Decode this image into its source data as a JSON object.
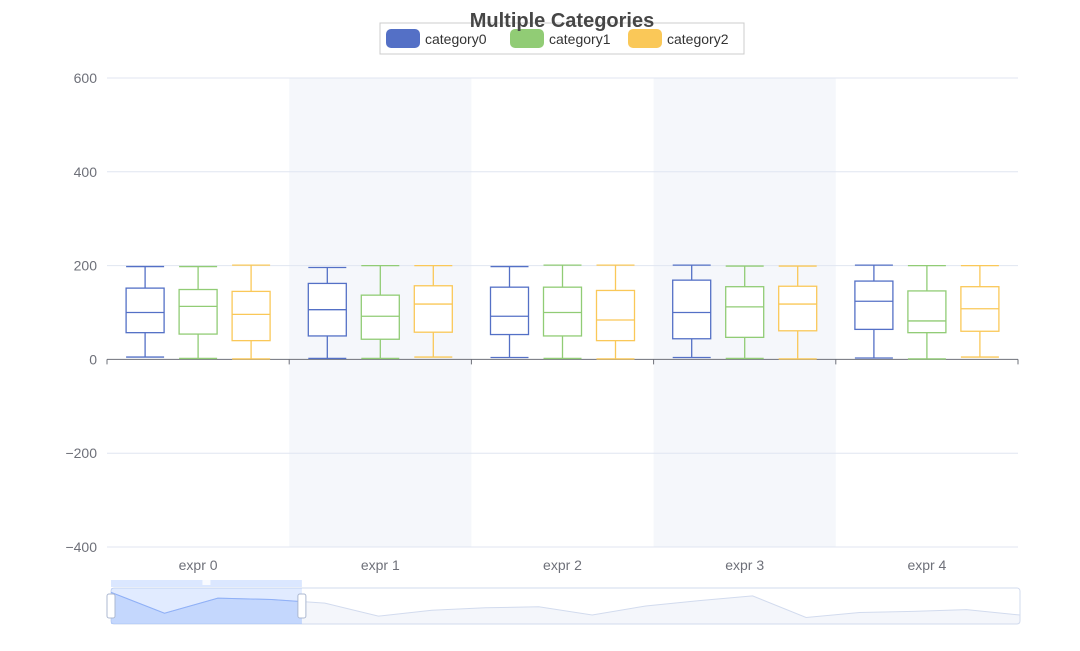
{
  "chart_data": {
    "type": "boxplot",
    "title": "Multiple Categories",
    "categories": [
      "expr 0",
      "expr 1",
      "expr 2",
      "expr 3",
      "expr 4"
    ],
    "ylim": [
      -400,
      600
    ],
    "yticks": [
      600,
      400,
      200,
      0,
      -200,
      -400
    ],
    "ytick_labels": [
      "600",
      "400",
      "200",
      "0",
      "−200",
      "−400"
    ],
    "grid": true,
    "legend_position": "top-center",
    "series": [
      {
        "name": "category0",
        "color": "#5470c6",
        "boxes": [
          {
            "min": 5,
            "q1": 57,
            "median": 100,
            "q3": 152,
            "max": 198
          },
          {
            "min": 2,
            "q1": 50,
            "median": 106,
            "q3": 162,
            "max": 196
          },
          {
            "min": 4,
            "q1": 53,
            "median": 92,
            "q3": 154,
            "max": 198
          },
          {
            "min": 4,
            "q1": 44,
            "median": 100,
            "q3": 169,
            "max": 201
          },
          {
            "min": 3,
            "q1": 64,
            "median": 124,
            "q3": 167,
            "max": 201
          }
        ]
      },
      {
        "name": "category1",
        "color": "#91cc75",
        "boxes": [
          {
            "min": 2,
            "q1": 54,
            "median": 113,
            "q3": 149,
            "max": 198
          },
          {
            "min": 2,
            "q1": 43,
            "median": 92,
            "q3": 137,
            "max": 200
          },
          {
            "min": 2,
            "q1": 50,
            "median": 100,
            "q3": 154,
            "max": 201
          },
          {
            "min": 2,
            "q1": 47,
            "median": 112,
            "q3": 155,
            "max": 199
          },
          {
            "min": 1,
            "q1": 57,
            "median": 82,
            "q3": 146,
            "max": 200
          }
        ]
      },
      {
        "name": "category2",
        "color": "#fac858",
        "boxes": [
          {
            "min": 1,
            "q1": 40,
            "median": 96,
            "q3": 145,
            "max": 201
          },
          {
            "min": 5,
            "q1": 58,
            "median": 118,
            "q3": 157,
            "max": 200
          },
          {
            "min": 1,
            "q1": 40,
            "median": 84,
            "q3": 147,
            "max": 201
          },
          {
            "min": 1,
            "q1": 61,
            "median": 118,
            "q3": 156,
            "max": 199
          },
          {
            "min": 5,
            "q1": 60,
            "median": 108,
            "q3": 155,
            "max": 200
          }
        ]
      }
    ],
    "datazoom": {
      "start_percent": 0,
      "end_percent": 21,
      "preview_values": [
        0.88,
        0.3,
        0.72,
        0.68,
        0.58,
        0.22,
        0.38,
        0.45,
        0.48,
        0.25,
        0.5,
        0.65,
        0.78,
        0.18,
        0.32,
        0.35,
        0.4,
        0.25
      ]
    }
  }
}
